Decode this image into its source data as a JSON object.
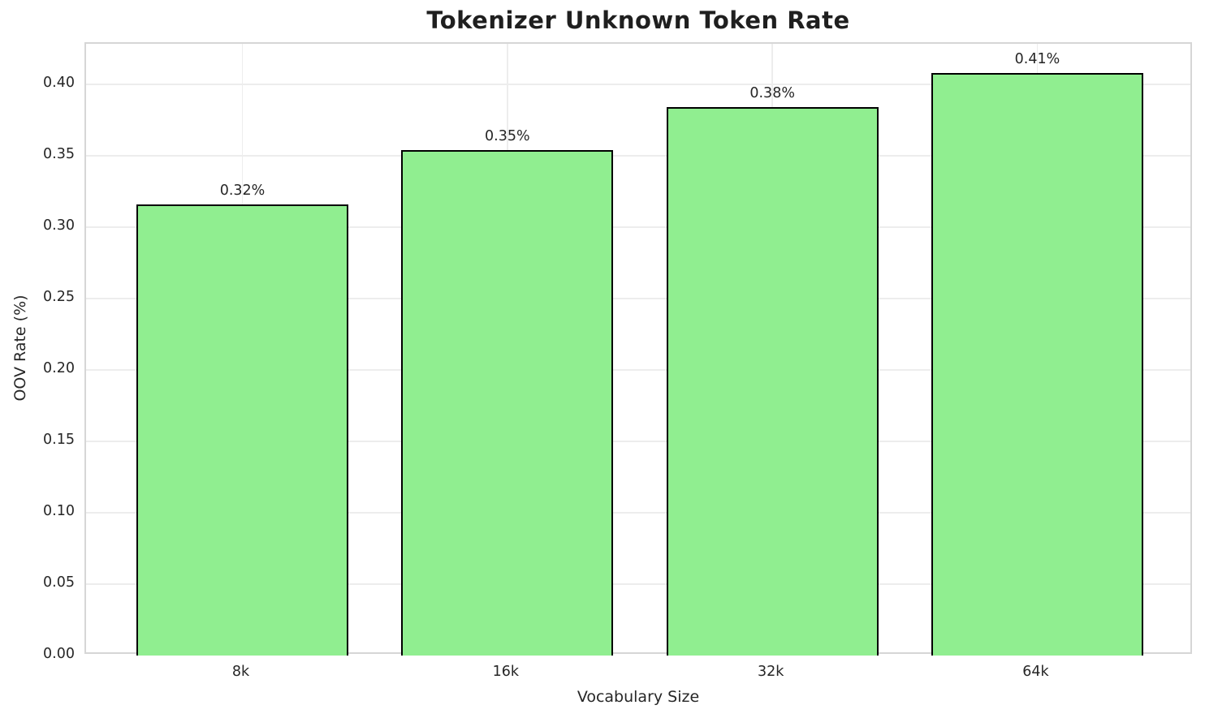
{
  "chart_data": {
    "type": "bar",
    "title": "Tokenizer Unknown Token Rate",
    "xlabel": "Vocabulary Size",
    "ylabel": "OOV Rate (%)",
    "categories": [
      "8k",
      "16k",
      "32k",
      "64k"
    ],
    "values": [
      0.316,
      0.354,
      0.384,
      0.408
    ],
    "bar_labels": [
      "0.32%",
      "0.35%",
      "0.38%",
      "0.41%"
    ],
    "ytick_labels": [
      "0.00",
      "0.05",
      "0.10",
      "0.15",
      "0.20",
      "0.25",
      "0.30",
      "0.35",
      "0.40"
    ],
    "ytick_values": [
      0.0,
      0.05,
      0.1,
      0.15,
      0.2,
      0.25,
      0.3,
      0.35,
      0.4
    ],
    "ylim": [
      0,
      0.4284
    ],
    "bar_width_fraction": 0.8,
    "x_margin_units": 0.59,
    "grid": true,
    "legend": "none",
    "colors": {
      "bar_fill": "#90EE90",
      "bar_edge": "#000000",
      "grid": "#EDEDED",
      "spine": "#D6D6D6",
      "text": "#262626",
      "title_text": "#1F1F1F",
      "background": "#FFFFFF"
    }
  }
}
